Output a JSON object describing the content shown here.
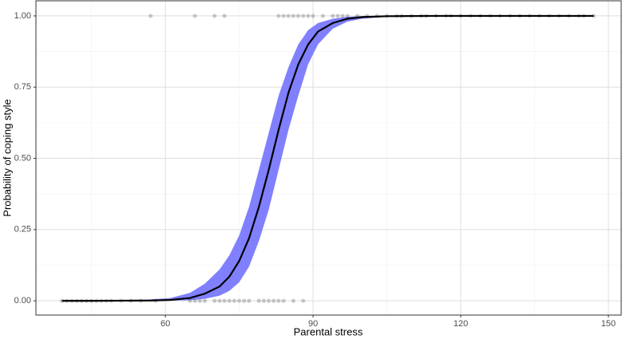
{
  "chart_data": {
    "type": "logistic",
    "x_label": "Parental stress",
    "y_label": "Probability of coping style",
    "xlim": [
      33.7,
      152.6
    ],
    "ylim": [
      -0.05,
      1.053
    ],
    "xticks": [
      60,
      90,
      120,
      150
    ],
    "yticks": [
      {
        "value": 0,
        "label": "0.00"
      },
      {
        "value": 0.25,
        "label": "0.25"
      },
      {
        "value": 0.5,
        "label": "0.50"
      },
      {
        "value": 0.75,
        "label": "0.75"
      },
      {
        "value": 1,
        "label": "1.00"
      }
    ],
    "x_minor_grid": [
      45,
      75,
      105,
      135
    ],
    "y_minor_grid": [
      0.125,
      0.375,
      0.625,
      0.875
    ],
    "grid": true,
    "points": {
      "color": "#000000",
      "opacity": 0.2,
      "x": [
        39,
        40,
        41,
        42,
        43,
        44,
        45,
        46,
        47,
        48,
        49,
        51,
        53,
        55,
        58,
        65,
        66,
        67,
        68,
        70,
        71,
        72,
        73,
        74,
        75,
        76,
        77,
        79,
        80,
        81,
        82,
        83,
        84,
        86,
        88,
        57,
        66,
        70,
        72,
        83,
        84,
        85,
        86,
        87,
        88,
        89,
        90,
        92,
        94,
        95,
        96,
        97,
        99,
        101,
        103,
        105,
        107,
        108,
        110,
        112,
        113,
        115,
        117,
        118,
        120,
        122,
        124,
        126,
        128,
        130,
        132,
        134,
        136,
        138,
        140,
        142,
        144,
        145,
        147
      ],
      "y": [
        0,
        0,
        0,
        0,
        0,
        0,
        0,
        0,
        0,
        0,
        0,
        0,
        0,
        0,
        0,
        0,
        0,
        0,
        0,
        0,
        0,
        0,
        0,
        0,
        0,
        0,
        0,
        0,
        0,
        0,
        0,
        0,
        0,
        0,
        0,
        1,
        1,
        1,
        1,
        1,
        1,
        1,
        1,
        1,
        1,
        1,
        1,
        1,
        1,
        1,
        1,
        1,
        1,
        1,
        1,
        1,
        1,
        1,
        1,
        1,
        1,
        1,
        1,
        1,
        1,
        1,
        1,
        1,
        1,
        1,
        1,
        1,
        1,
        1,
        1,
        1,
        1,
        1,
        1
      ]
    },
    "fit": {
      "color": "#000000",
      "band_color": "#8080ff",
      "x": [
        39,
        45,
        51,
        57,
        61,
        65,
        68,
        71,
        73,
        75,
        77,
        79,
        81,
        83,
        85,
        87,
        89,
        91,
        94,
        97,
        100,
        105,
        115,
        130,
        147
      ],
      "values": [
        0,
        0,
        0.0005,
        0.001,
        0.003,
        0.01,
        0.025,
        0.05,
        0.085,
        0.14,
        0.22,
        0.33,
        0.46,
        0.6,
        0.73,
        0.83,
        0.9,
        0.945,
        0.975,
        0.99,
        0.996,
        0.999,
        1,
        1,
        1
      ],
      "lower": [
        0,
        0,
        0,
        0,
        0.0005,
        0.002,
        0.007,
        0.018,
        0.035,
        0.065,
        0.12,
        0.21,
        0.32,
        0.46,
        0.6,
        0.72,
        0.83,
        0.9,
        0.955,
        0.98,
        0.99,
        0.997,
        1,
        1,
        1
      ],
      "upper": [
        0,
        0,
        0.002,
        0.005,
        0.01,
        0.028,
        0.06,
        0.11,
        0.16,
        0.23,
        0.33,
        0.46,
        0.59,
        0.72,
        0.82,
        0.9,
        0.95,
        0.975,
        0.99,
        0.997,
        0.999,
        1,
        1,
        1,
        1
      ]
    }
  }
}
